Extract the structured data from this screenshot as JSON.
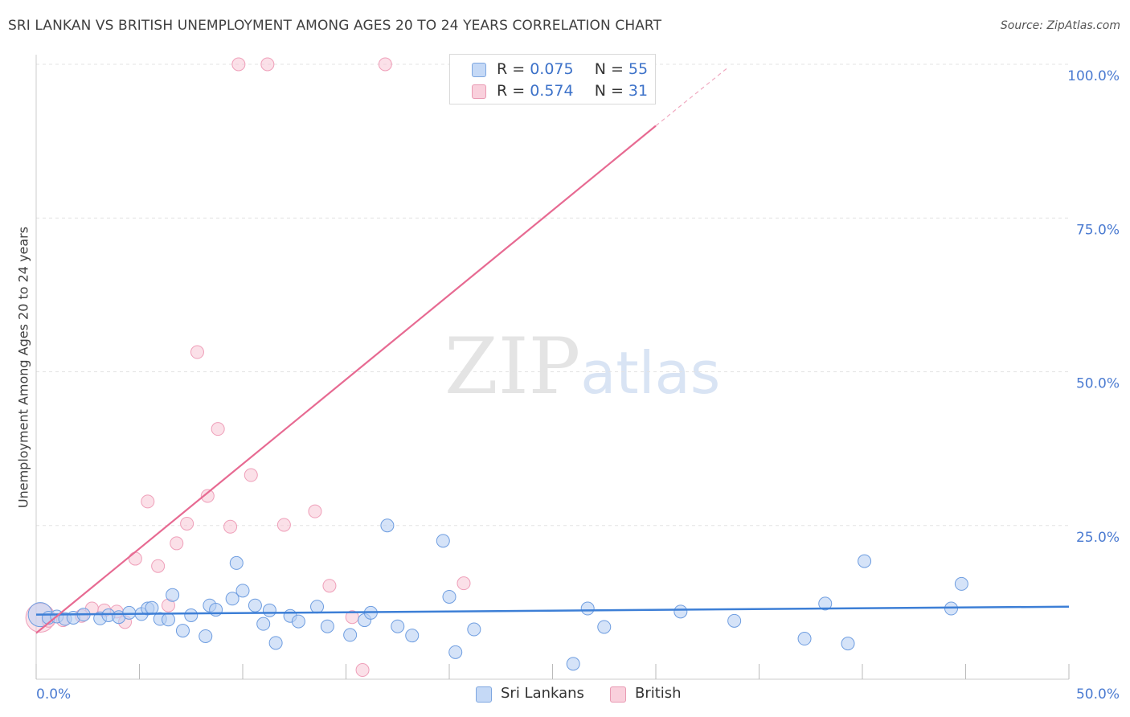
{
  "title": "SRI LANKAN VS BRITISH UNEMPLOYMENT AMONG AGES 20 TO 24 YEARS CORRELATION CHART",
  "source": "Source: ZipAtlas.com",
  "watermark": {
    "zip": "ZIP",
    "atlas": "atlas"
  },
  "legend": {
    "row1": {
      "r_label": "R = ",
      "r_value": "0.075",
      "n_label": "N = ",
      "n_value": "55"
    },
    "row2": {
      "r_label": "R = ",
      "r_value": "0.574",
      "n_label": "N = ",
      "n_value": "31"
    }
  },
  "colors": {
    "blue": "#3d7fd6",
    "pink": "#e76a92",
    "blue_fill": "#b9d1f4",
    "pink_fill": "#f7c7d5"
  },
  "chart_data": {
    "type": "scatter",
    "title": "SRI LANKAN VS BRITISH UNEMPLOYMENT AMONG AGES 20 TO 24 YEARS CORRELATION CHART",
    "xlabel": "",
    "ylabel": "Unemployment Among Ages 20 to 24 years",
    "xlim": [
      0,
      50
    ],
    "ylim": [
      0,
      100
    ],
    "x_tick_labels": [
      "0.0%",
      "50.0%"
    ],
    "y_tick_labels": [
      "100.0%",
      "75.0%",
      "50.0%",
      "25.0%"
    ],
    "y_ticks": [
      100,
      75,
      50,
      25
    ],
    "series": [
      {
        "name": "Sri Lankans",
        "r": 0.075,
        "n": 55,
        "trend": {
          "x": [
            0,
            50
          ],
          "y": [
            10.5,
            11.8
          ]
        },
        "points": [
          {
            "x": 0.2,
            "y": 10.5,
            "big": true
          },
          {
            "x": 0.6,
            "y": 10.0
          },
          {
            "x": 1.0,
            "y": 10.2
          },
          {
            "x": 1.4,
            "y": 9.8
          },
          {
            "x": 1.8,
            "y": 10.0
          },
          {
            "x": 2.3,
            "y": 10.5
          },
          {
            "x": 3.1,
            "y": 9.9
          },
          {
            "x": 3.5,
            "y": 10.4
          },
          {
            "x": 4.0,
            "y": 10.1
          },
          {
            "x": 4.5,
            "y": 10.8
          },
          {
            "x": 5.1,
            "y": 10.6
          },
          {
            "x": 5.4,
            "y": 11.5
          },
          {
            "x": 5.6,
            "y": 11.6
          },
          {
            "x": 6.0,
            "y": 9.8
          },
          {
            "x": 6.4,
            "y": 9.7
          },
          {
            "x": 6.6,
            "y": 13.7
          },
          {
            "x": 7.1,
            "y": 7.9
          },
          {
            "x": 7.5,
            "y": 10.4
          },
          {
            "x": 8.2,
            "y": 7.0
          },
          {
            "x": 8.4,
            "y": 12.0
          },
          {
            "x": 8.7,
            "y": 11.3
          },
          {
            "x": 9.5,
            "y": 13.1
          },
          {
            "x": 9.7,
            "y": 18.9
          },
          {
            "x": 10.0,
            "y": 14.4
          },
          {
            "x": 10.6,
            "y": 12.0
          },
          {
            "x": 11.0,
            "y": 9.0
          },
          {
            "x": 11.3,
            "y": 11.2
          },
          {
            "x": 11.6,
            "y": 5.9
          },
          {
            "x": 12.3,
            "y": 10.3
          },
          {
            "x": 12.7,
            "y": 9.4
          },
          {
            "x": 13.6,
            "y": 11.8
          },
          {
            "x": 14.1,
            "y": 8.6
          },
          {
            "x": 15.2,
            "y": 7.2
          },
          {
            "x": 15.9,
            "y": 9.6
          },
          {
            "x": 16.2,
            "y": 10.8
          },
          {
            "x": 17.0,
            "y": 25.0
          },
          {
            "x": 17.5,
            "y": 8.6
          },
          {
            "x": 18.2,
            "y": 7.1
          },
          {
            "x": 19.7,
            "y": 22.5
          },
          {
            "x": 20.0,
            "y": 13.4
          },
          {
            "x": 20.3,
            "y": 4.4
          },
          {
            "x": 21.2,
            "y": 8.1
          },
          {
            "x": 26.0,
            "y": 2.5
          },
          {
            "x": 26.7,
            "y": 11.5
          },
          {
            "x": 27.5,
            "y": 8.5
          },
          {
            "x": 31.2,
            "y": 11.0
          },
          {
            "x": 33.8,
            "y": 9.5
          },
          {
            "x": 37.2,
            "y": 6.6
          },
          {
            "x": 38.2,
            "y": 12.3
          },
          {
            "x": 39.3,
            "y": 5.8
          },
          {
            "x": 40.1,
            "y": 19.2
          },
          {
            "x": 44.3,
            "y": 11.5
          },
          {
            "x": 44.8,
            "y": 15.5
          }
        ]
      },
      {
        "name": "British",
        "r": 0.574,
        "n": 31,
        "trend": {
          "x": [
            0,
            30.0
          ],
          "y": [
            7.5,
            90.0
          ]
        },
        "trend_dashed": {
          "x": [
            30.0,
            33.5
          ],
          "y": [
            90.0,
            99.5
          ]
        },
        "points": [
          {
            "x": 0.2,
            "y": 10.0,
            "big": true
          },
          {
            "x": 0.6,
            "y": 9.5
          },
          {
            "x": 1.3,
            "y": 9.6
          },
          {
            "x": 2.2,
            "y": 10.3
          },
          {
            "x": 2.7,
            "y": 11.5
          },
          {
            "x": 3.3,
            "y": 11.2
          },
          {
            "x": 3.9,
            "y": 11.0
          },
          {
            "x": 4.3,
            "y": 9.3
          },
          {
            "x": 4.8,
            "y": 19.6
          },
          {
            "x": 5.4,
            "y": 28.9
          },
          {
            "x": 5.9,
            "y": 18.4
          },
          {
            "x": 6.4,
            "y": 12.0
          },
          {
            "x": 6.8,
            "y": 22.1
          },
          {
            "x": 7.3,
            "y": 25.3
          },
          {
            "x": 7.8,
            "y": 53.2
          },
          {
            "x": 8.3,
            "y": 29.8
          },
          {
            "x": 8.8,
            "y": 40.7
          },
          {
            "x": 9.4,
            "y": 24.8
          },
          {
            "x": 9.8,
            "y": 100.0
          },
          {
            "x": 10.4,
            "y": 33.2
          },
          {
            "x": 11.2,
            "y": 100.0
          },
          {
            "x": 12.0,
            "y": 25.1
          },
          {
            "x": 13.5,
            "y": 27.3
          },
          {
            "x": 14.2,
            "y": 15.2
          },
          {
            "x": 15.3,
            "y": 10.1
          },
          {
            "x": 15.8,
            "y": 1.5
          },
          {
            "x": 16.9,
            "y": 100.0
          },
          {
            "x": 20.7,
            "y": 15.6
          }
        ]
      }
    ]
  },
  "bottom_legend": {
    "item1": "Sri Lankans",
    "item2": "British"
  }
}
